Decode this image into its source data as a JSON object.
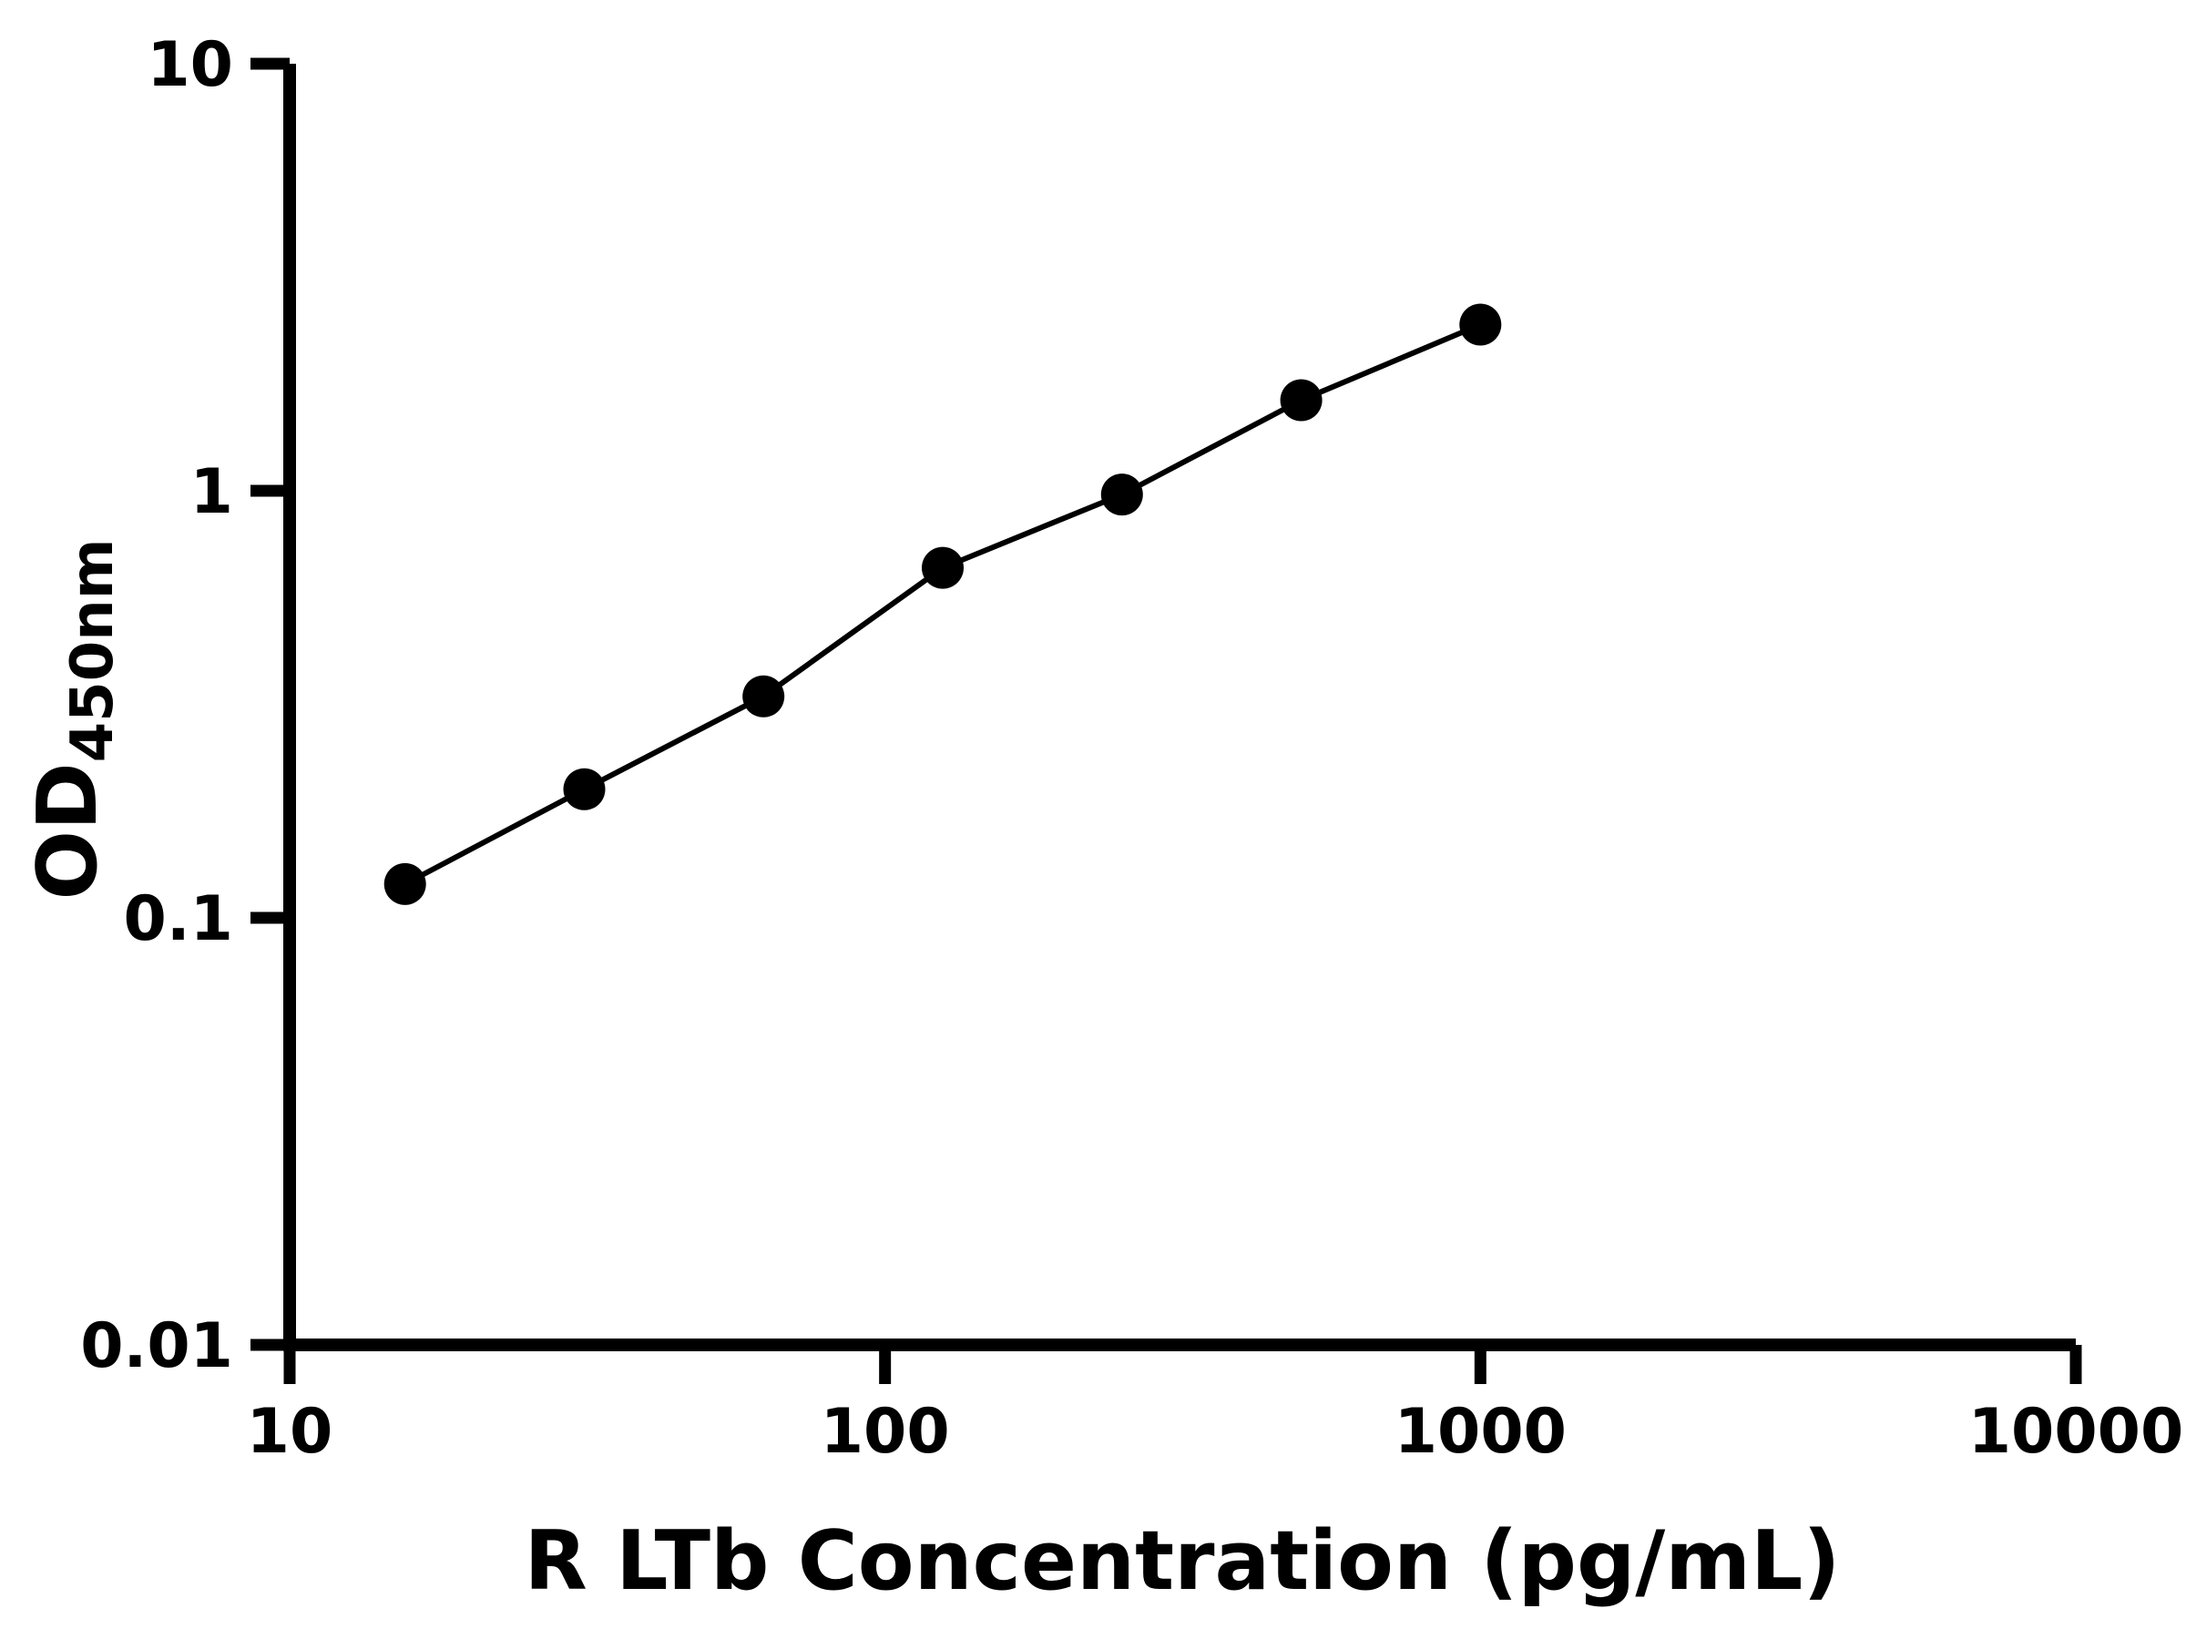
{
  "colors": {
    "background": "#ffffff",
    "foreground": "#000000"
  },
  "chart_data": {
    "type": "line",
    "subtype": "scatter-line-standard-curve",
    "title": "",
    "xlabel": "R LTb Concentration (pg/mL)",
    "ylabel_main": "OD",
    "ylabel_sub": "450nm",
    "x": [
      15.625,
      31.25,
      62.5,
      125,
      250,
      500,
      1000
    ],
    "y": [
      0.12,
      0.2,
      0.33,
      0.66,
      0.98,
      1.63,
      2.45
    ],
    "x_scale": "log",
    "y_scale": "log",
    "xlim": [
      10,
      10000
    ],
    "ylim": [
      0.01,
      10
    ],
    "x_ticks": [
      "10",
      "100",
      "1000",
      "10000"
    ],
    "y_ticks": [
      "0.01",
      "0.1",
      "1",
      "10"
    ],
    "grid": false,
    "legend_position": "none",
    "marker": "circle",
    "marker_color": "#000000",
    "line_color": "#000000"
  }
}
